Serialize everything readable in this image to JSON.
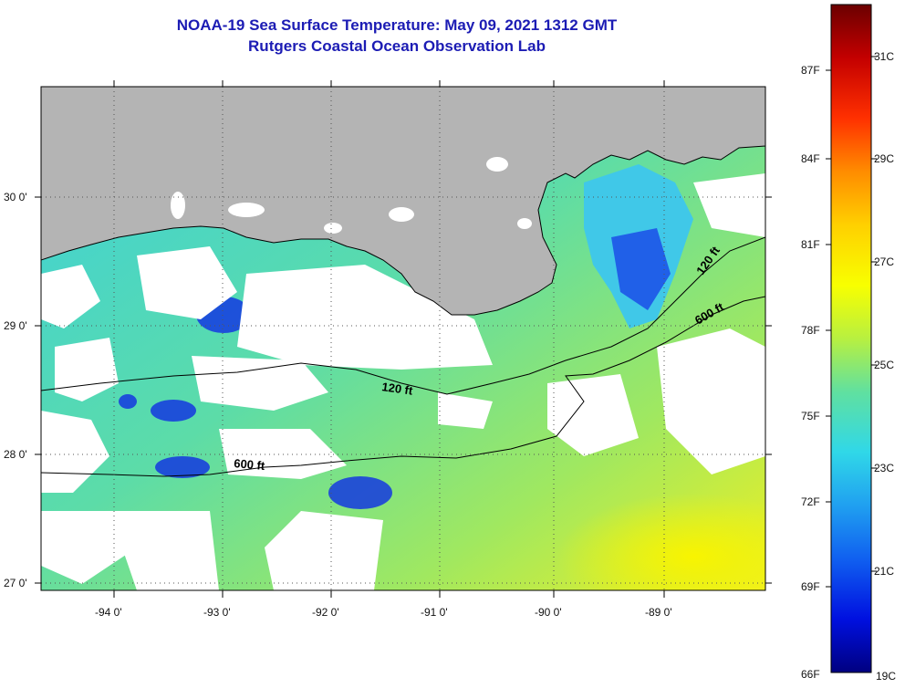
{
  "header": {
    "title": "NOAA-19 Sea Surface Temperature:  May 09, 2021 1312 GMT",
    "subtitle": "Rutgers Coastal Ocean Observation Lab"
  },
  "map": {
    "lat_labels": [
      "30 0'",
      "29 0'",
      "28 0'",
      "27 0'"
    ],
    "lon_labels": [
      "-94 0'",
      "-93 0'",
      "-92 0'",
      "-91 0'",
      "-90 0'",
      "-89 0'"
    ],
    "isobaths": [
      {
        "id": "120a",
        "label": "120 ft"
      },
      {
        "id": "120b",
        "label": "120 ft"
      },
      {
        "id": "600a",
        "label": "600 ft"
      },
      {
        "id": "600b",
        "label": "600 ft"
      }
    ],
    "colors": {
      "land": "#b4b4b4",
      "cloud": "#ffffff",
      "coast": "#000000"
    }
  },
  "colorbar": {
    "f_labels": [
      "87F",
      "84F",
      "81F",
      "78F",
      "75F",
      "72F",
      "69F",
      "66F"
    ],
    "c_labels": [
      "31C",
      "29C",
      "27C",
      "25C",
      "23C",
      "21C",
      "19C"
    ],
    "stops": [
      "#6b0000",
      "#c40000",
      "#ff3000",
      "#ff8c00",
      "#ffd000",
      "#f8ff00",
      "#b8f040",
      "#60e0a0",
      "#30d8e8",
      "#20a0f0",
      "#1060f0",
      "#0010e0",
      "#000080"
    ]
  }
}
